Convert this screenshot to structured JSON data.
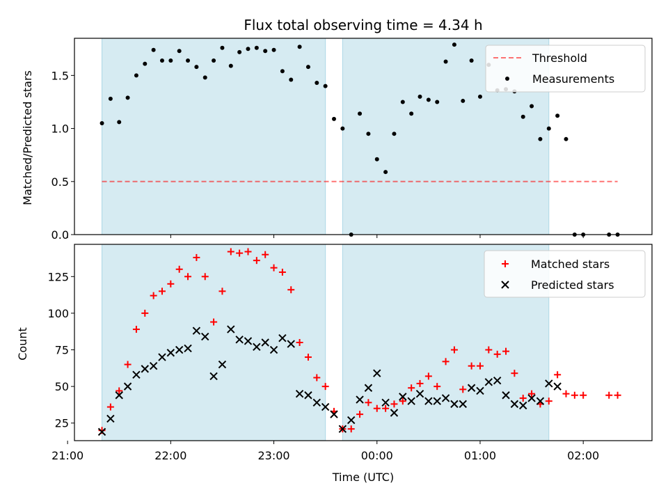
{
  "title": "Flux total observing time = 4.34 h",
  "colors": {
    "shade": "#add8e6",
    "threshold": "#ff0000",
    "measurements": "#000000",
    "matched": "#ff0000",
    "predicted": "#000000"
  },
  "chart_data": [
    {
      "type": "scatter",
      "ylabel": "Matched/Predicted stars",
      "xlabel": "",
      "xlim": [
        "21:04",
        "02:40"
      ],
      "ylim": [
        0,
        1.85
      ],
      "yticks": [
        "0.0",
        "0.5",
        "1.0",
        "1.5"
      ],
      "shaded_intervals": [
        [
          "21:20",
          "23:30"
        ],
        [
          "23:40",
          "01:40"
        ]
      ],
      "legend_position": "upper right",
      "threshold": {
        "name": "Threshold",
        "y": 0.5,
        "x_range": [
          "21:20",
          "02:20"
        ]
      },
      "series": [
        {
          "name": "Measurements",
          "marker": "dot",
          "x": [
            "21:20",
            "21:25",
            "21:30",
            "21:35",
            "21:40",
            "21:45",
            "21:50",
            "21:55",
            "22:00",
            "22:05",
            "22:10",
            "22:15",
            "22:20",
            "22:25",
            "22:30",
            "22:35",
            "22:40",
            "22:45",
            "22:50",
            "22:55",
            "23:00",
            "23:05",
            "23:10",
            "23:15",
            "23:20",
            "23:25",
            "23:30",
            "23:35",
            "23:40",
            "23:45",
            "23:50",
            "23:55",
            "24:00",
            "24:05",
            "24:10",
            "24:15",
            "24:20",
            "24:25",
            "24:30",
            "24:35",
            "24:40",
            "24:45",
            "24:50",
            "24:55",
            "25:00",
            "25:05",
            "25:10",
            "25:15",
            "25:20",
            "25:25",
            "25:30",
            "25:35",
            "25:40",
            "25:45",
            "25:50",
            "25:55",
            "26:00",
            "26:15",
            "26:20"
          ],
          "y": [
            1.05,
            1.28,
            1.06,
            1.29,
            1.5,
            1.61,
            1.74,
            1.64,
            1.64,
            1.73,
            1.64,
            1.58,
            1.48,
            1.64,
            1.76,
            1.59,
            1.72,
            1.75,
            1.76,
            1.73,
            1.74,
            1.54,
            1.46,
            1.77,
            1.58,
            1.43,
            1.4,
            1.09,
            1.0,
            0.0,
            1.14,
            0.95,
            0.71,
            0.59,
            0.95,
            1.25,
            1.14,
            1.3,
            1.27,
            1.25,
            1.63,
            1.79,
            1.26,
            1.64,
            1.3,
            1.6,
            1.36,
            1.37,
            1.35,
            1.11,
            1.21,
            0.9,
            1.0,
            1.12,
            0.9,
            0.0,
            0.0,
            0.0,
            0.0
          ]
        }
      ],
      "xticks": [
        "21:00",
        "22:00",
        "23:00",
        "00:00",
        "01:00",
        "02:00"
      ]
    },
    {
      "type": "scatter",
      "ylabel": "Count",
      "xlabel": "Time (UTC)",
      "xlim": [
        "21:04",
        "02:40"
      ],
      "ylim": [
        13,
        147
      ],
      "yticks": [
        "25",
        "50",
        "75",
        "100",
        "125"
      ],
      "xticks": [
        "21:00",
        "22:00",
        "23:00",
        "00:00",
        "01:00",
        "02:00"
      ],
      "shaded_intervals": [
        [
          "21:20",
          "23:30"
        ],
        [
          "23:40",
          "01:40"
        ]
      ],
      "legend_position": "upper right",
      "series": [
        {
          "name": "Matched stars",
          "marker": "plus",
          "x": [
            "21:20",
            "21:25",
            "21:30",
            "21:35",
            "21:40",
            "21:45",
            "21:50",
            "21:55",
            "22:00",
            "22:05",
            "22:10",
            "22:15",
            "22:20",
            "22:25",
            "22:30",
            "22:35",
            "22:40",
            "22:45",
            "22:50",
            "22:55",
            "23:00",
            "23:05",
            "23:10",
            "23:15",
            "23:20",
            "23:25",
            "23:30",
            "23:35",
            "23:40",
            "23:45",
            "23:50",
            "23:55",
            "24:00",
            "24:05",
            "24:10",
            "24:15",
            "24:20",
            "24:25",
            "24:30",
            "24:35",
            "24:40",
            "24:45",
            "24:50",
            "24:55",
            "25:00",
            "25:05",
            "25:10",
            "25:15",
            "25:20",
            "25:25",
            "25:30",
            "25:35",
            "25:40",
            "25:45",
            "25:50",
            "25:55",
            "26:00",
            "26:15",
            "26:20"
          ],
          "y": [
            20,
            36,
            47,
            65,
            89,
            100,
            112,
            115,
            120,
            130,
            125,
            138,
            125,
            94,
            115,
            142,
            141,
            142,
            136,
            140,
            131,
            128,
            116,
            80,
            70,
            56,
            50,
            33,
            21,
            21,
            31,
            39,
            35,
            35,
            38,
            40,
            49,
            52,
            57,
            50,
            67,
            75,
            48,
            64,
            64,
            75,
            72,
            74,
            59,
            42,
            45,
            38,
            40,
            58,
            45,
            44,
            44,
            44,
            44
          ]
        },
        {
          "name": "Predicted stars",
          "marker": "x",
          "x": [
            "21:20",
            "21:25",
            "21:30",
            "21:35",
            "21:40",
            "21:45",
            "21:50",
            "21:55",
            "22:00",
            "22:05",
            "22:10",
            "22:15",
            "22:20",
            "22:25",
            "22:30",
            "22:35",
            "22:40",
            "22:45",
            "22:50",
            "22:55",
            "23:00",
            "23:05",
            "23:10",
            "23:15",
            "23:20",
            "23:25",
            "23:30",
            "23:35",
            "23:40",
            "23:45",
            "23:50",
            "23:55",
            "24:00",
            "24:05",
            "24:10",
            "24:15",
            "24:20",
            "24:25",
            "24:30",
            "24:35",
            "24:40",
            "24:45",
            "24:50",
            "24:55",
            "25:00",
            "25:05",
            "25:10",
            "25:15",
            "25:20",
            "25:25",
            "25:30",
            "25:35",
            "25:40",
            "25:45"
          ],
          "y": [
            19,
            28,
            44,
            50,
            58,
            62,
            64,
            70,
            73,
            75,
            76,
            88,
            84,
            57,
            65,
            89,
            82,
            81,
            77,
            80,
            75,
            83,
            79,
            45,
            44,
            39,
            36,
            31,
            21,
            27,
            41,
            49,
            59,
            39,
            32,
            43,
            40,
            45,
            40,
            40,
            42,
            38,
            38,
            49,
            47,
            53,
            54,
            44,
            38,
            37,
            42,
            40,
            52,
            50
          ]
        }
      ]
    }
  ]
}
